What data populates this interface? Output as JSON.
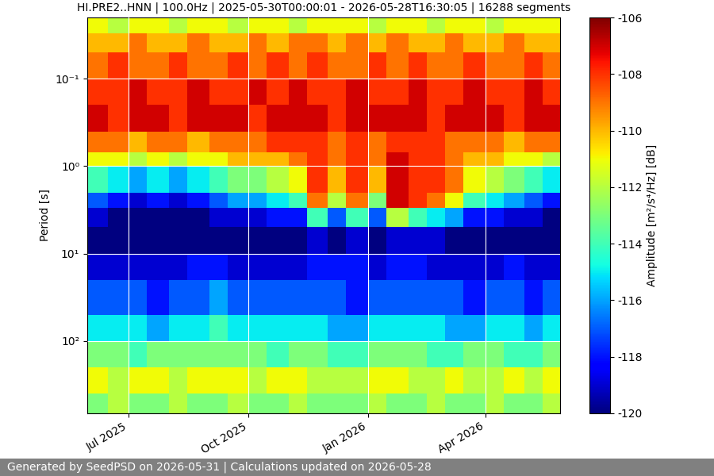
{
  "chart_data": {
    "type": "heatmap",
    "title": "HI.PRE2..HNN | 100.0Hz | 2025-05-30T00:00:01 - 2026-05-28T16:30:05 | 16288 segments",
    "y_label": "Period [s]",
    "colorbar_label": "Amplitude [m²/s⁴/Hz] [dB]",
    "footer": "Generated by SeedPSD on 2026-05-31 | Calculations updated on 2026-05-28",
    "log": "y",
    "grid": true,
    "color": "jet",
    "xlim": [
      "2025-05-30",
      "2026-05-28"
    ],
    "xticks": [
      {
        "value": "2025-07-01",
        "label": "Jul 2025"
      },
      {
        "value": "2025-10-01",
        "label": "Oct 2025"
      },
      {
        "value": "2026-01-01",
        "label": "Jan 2026"
      },
      {
        "value": "2026-04-01",
        "label": "Apr 2026"
      }
    ],
    "ylim": [
      670,
      0.02
    ],
    "yticks": [
      {
        "value": 0.1,
        "label": "10⁻¹"
      },
      {
        "value": 1,
        "label": "10⁰"
      },
      {
        "value": 10,
        "label": "10¹"
      },
      {
        "value": 100,
        "label": "10²"
      }
    ],
    "color_range": [
      -120,
      -106
    ],
    "color_ticks": [
      -120,
      -118,
      -116,
      -114,
      -112,
      -110,
      -108,
      -106
    ],
    "time_edges": [
      "2025-05-30",
      "2025-06-15",
      "2025-07-01",
      "2025-07-15",
      "2025-08-01",
      "2025-08-15",
      "2025-09-01",
      "2025-09-15",
      "2025-10-01",
      "2025-10-15",
      "2025-11-01",
      "2025-11-15",
      "2025-12-01",
      "2025-12-15",
      "2026-01-01",
      "2026-01-15",
      "2026-02-01",
      "2026-02-15",
      "2026-03-01",
      "2026-03-15",
      "2026-04-01",
      "2026-04-15",
      "2026-05-01",
      "2026-05-15",
      "2026-05-28"
    ],
    "period_edges": [
      0.02,
      0.03,
      0.05,
      0.1,
      0.2,
      0.4,
      0.7,
      1,
      2,
      3,
      5,
      10,
      20,
      50,
      100,
      200,
      400,
      670
    ],
    "cells": [
      [
        -111,
        -112,
        -111,
        -111,
        -112,
        -111,
        -111,
        -112,
        -111,
        -111,
        -112,
        -111,
        -111,
        -111,
        -112,
        -111,
        -111,
        -112,
        -111,
        -111,
        -112,
        -111,
        -111,
        -111
      ],
      [
        -110,
        -110,
        -109,
        -110,
        -110,
        -109,
        -110,
        -110,
        -109,
        -110,
        -109,
        -109,
        -110,
        -109,
        -110,
        -109,
        -110,
        -110,
        -109,
        -110,
        -110,
        -109,
        -110,
        -110
      ],
      [
        -109,
        -108,
        -109,
        -109,
        -108,
        -109,
        -109,
        -108,
        -109,
        -108,
        -109,
        -108,
        -109,
        -109,
        -108,
        -109,
        -108,
        -109,
        -109,
        -108,
        -109,
        -109,
        -108,
        -109
      ],
      [
        -108,
        -108,
        -107,
        -108,
        -108,
        -107,
        -108,
        -108,
        -107,
        -108,
        -107,
        -108,
        -108,
        -107,
        -108,
        -108,
        -107,
        -108,
        -108,
        -107,
        -108,
        -108,
        -107,
        -108
      ],
      [
        -107,
        -108,
        -107,
        -107,
        -108,
        -107,
        -107,
        -107,
        -108,
        -107,
        -107,
        -107,
        -108,
        -107,
        -107,
        -107,
        -107,
        -108,
        -107,
        -107,
        -107,
        -108,
        -107,
        -107
      ],
      [
        -109,
        -109,
        -110,
        -109,
        -109,
        -110,
        -109,
        -109,
        -109,
        -108,
        -108,
        -108,
        -109,
        -108,
        -109,
        -108,
        -108,
        -108,
        -109,
        -109,
        -109,
        -110,
        -109,
        -109
      ],
      [
        -111,
        -111,
        -112,
        -111,
        -112,
        -111,
        -111,
        -110,
        -110,
        -110,
        -109,
        -108,
        -109,
        -108,
        -109,
        -107,
        -108,
        -108,
        -109,
        -110,
        -110,
        -111,
        -111,
        -112
      ],
      [
        -114,
        -115,
        -116,
        -115,
        -116,
        -115,
        -114,
        -113,
        -113,
        -112,
        -111,
        -108,
        -110,
        -108,
        -110,
        -107,
        -108,
        -108,
        -109,
        -111,
        -112,
        -113,
        -114,
        -115
      ],
      [
        -117,
        -118,
        -119,
        -118,
        -119,
        -118,
        -117,
        -116,
        -116,
        -115,
        -114,
        -109,
        -112,
        -109,
        -113,
        -107,
        -108,
        -109,
        -111,
        -114,
        -115,
        -116,
        -117,
        -118
      ],
      [
        -119,
        -120,
        -120,
        -120,
        -120,
        -120,
        -119,
        -119,
        -119,
        -118,
        -118,
        -114,
        -117,
        -114,
        -117,
        -112,
        -114,
        -115,
        -116,
        -118,
        -118,
        -119,
        -119,
        -120
      ],
      [
        -120,
        -120,
        -120,
        -120,
        -120,
        -120,
        -120,
        -120,
        -120,
        -120,
        -120,
        -119,
        -120,
        -119,
        -120,
        -119,
        -119,
        -119,
        -120,
        -120,
        -120,
        -120,
        -120,
        -120
      ],
      [
        -119,
        -119,
        -119,
        -119,
        -119,
        -118,
        -118,
        -119,
        -119,
        -119,
        -119,
        -118,
        -118,
        -118,
        -119,
        -118,
        -118,
        -119,
        -119,
        -119,
        -119,
        -118,
        -119,
        -119
      ],
      [
        -117,
        -117,
        -117,
        -118,
        -117,
        -117,
        -116,
        -117,
        -117,
        -117,
        -117,
        -117,
        -117,
        -118,
        -117,
        -117,
        -117,
        -117,
        -117,
        -118,
        -117,
        -117,
        -118,
        -117
      ],
      [
        -115,
        -115,
        -115,
        -116,
        -115,
        -115,
        -114,
        -115,
        -115,
        -115,
        -115,
        -115,
        -116,
        -116,
        -115,
        -115,
        -115,
        -115,
        -116,
        -116,
        -115,
        -115,
        -116,
        -115
      ],
      [
        -113,
        -113,
        -114,
        -113,
        -113,
        -113,
        -113,
        -113,
        -113,
        -114,
        -113,
        -113,
        -114,
        -114,
        -113,
        -113,
        -113,
        -114,
        -114,
        -113,
        -113,
        -114,
        -114,
        -113
      ],
      [
        -111,
        -112,
        -111,
        -111,
        -112,
        -111,
        -111,
        -111,
        -112,
        -111,
        -111,
        -112,
        -112,
        -112,
        -111,
        -111,
        -112,
        -112,
        -111,
        -112,
        -112,
        -111,
        -112,
        -111
      ],
      [
        -113,
        -112,
        -113,
        -113,
        -112,
        -113,
        -113,
        -112,
        -113,
        -113,
        -112,
        -113,
        -113,
        -113,
        -112,
        -113,
        -113,
        -112,
        -113,
        -113,
        -112,
        -113,
        -113,
        -112
      ]
    ]
  }
}
